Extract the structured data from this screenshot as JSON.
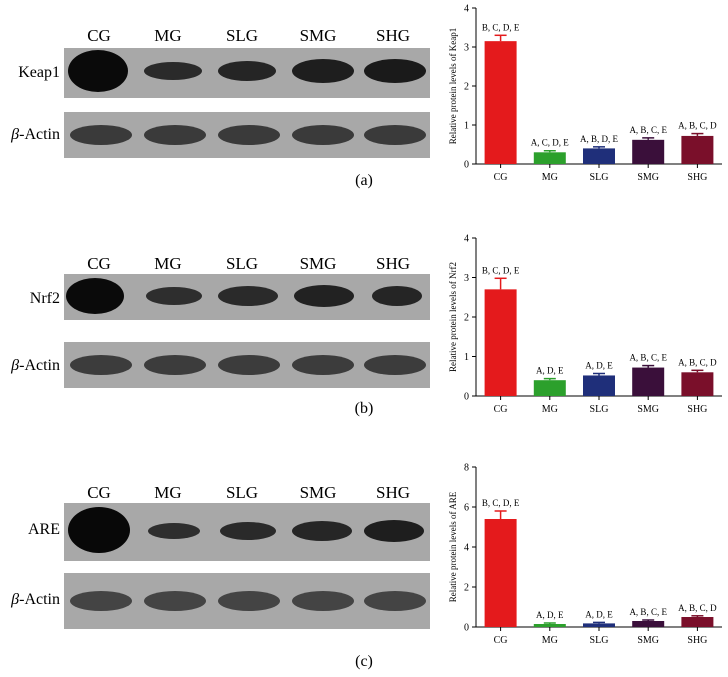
{
  "lanes": [
    "CG",
    "MG",
    "SLG",
    "SMG",
    "SHG"
  ],
  "actin_prefix": "β",
  "actin_suffix": "-Actin",
  "panels": [
    {
      "id": "a",
      "label": "(a)",
      "protein": "Keap1"
    },
    {
      "id": "b",
      "label": "(b)",
      "protein": "Nrf2"
    },
    {
      "id": "c",
      "label": "(c)",
      "protein": "ARE"
    }
  ],
  "colors": {
    "CG": "#e41a1c",
    "MG": "#2ca02c",
    "SLG": "#1f2f7a",
    "SMG": "#3a0f3a",
    "SHG": "#7a0f2a"
  },
  "chart_data": [
    {
      "type": "bar",
      "categories": [
        "CG",
        "MG",
        "SLG",
        "SMG",
        "SHG"
      ],
      "values": [
        3.15,
        0.3,
        0.4,
        0.62,
        0.72
      ],
      "errors": [
        0.15,
        0.04,
        0.04,
        0.05,
        0.06
      ],
      "annotations": [
        "B, C, D, E",
        "A, C, D, E",
        "A, B, D, E",
        "A, B, C, E",
        "A, B, C, D"
      ],
      "ylabel": "Relative protein levels of Keap1",
      "ylim": [
        0,
        4
      ],
      "yticks": [
        0,
        1,
        2,
        3,
        4
      ]
    },
    {
      "type": "bar",
      "categories": [
        "CG",
        "MG",
        "SLG",
        "SMG",
        "SHG"
      ],
      "values": [
        2.7,
        0.4,
        0.52,
        0.72,
        0.6
      ],
      "errors": [
        0.28,
        0.04,
        0.05,
        0.05,
        0.05
      ],
      "annotations": [
        "B, C, D, E",
        "A, D, E",
        "A, D, E",
        "A, B, C, E",
        "A, B, C, D"
      ],
      "ylabel": "Relative protein levels of Nrf2",
      "ylim": [
        0,
        4
      ],
      "yticks": [
        0,
        1,
        2,
        3,
        4
      ]
    },
    {
      "type": "bar",
      "categories": [
        "CG",
        "MG",
        "SLG",
        "SMG",
        "SHG"
      ],
      "values": [
        5.4,
        0.15,
        0.18,
        0.3,
        0.5
      ],
      "errors": [
        0.4,
        0.05,
        0.05,
        0.05,
        0.06
      ],
      "annotations": [
        "B, C, D, E",
        "A, D, E",
        "A, D, E",
        "A, B, C, E",
        "A, B, C, D"
      ],
      "ylabel": "Relative protein levels of ARE",
      "ylim": [
        0,
        8
      ],
      "yticks": [
        0,
        2,
        4,
        6,
        8
      ]
    }
  ]
}
